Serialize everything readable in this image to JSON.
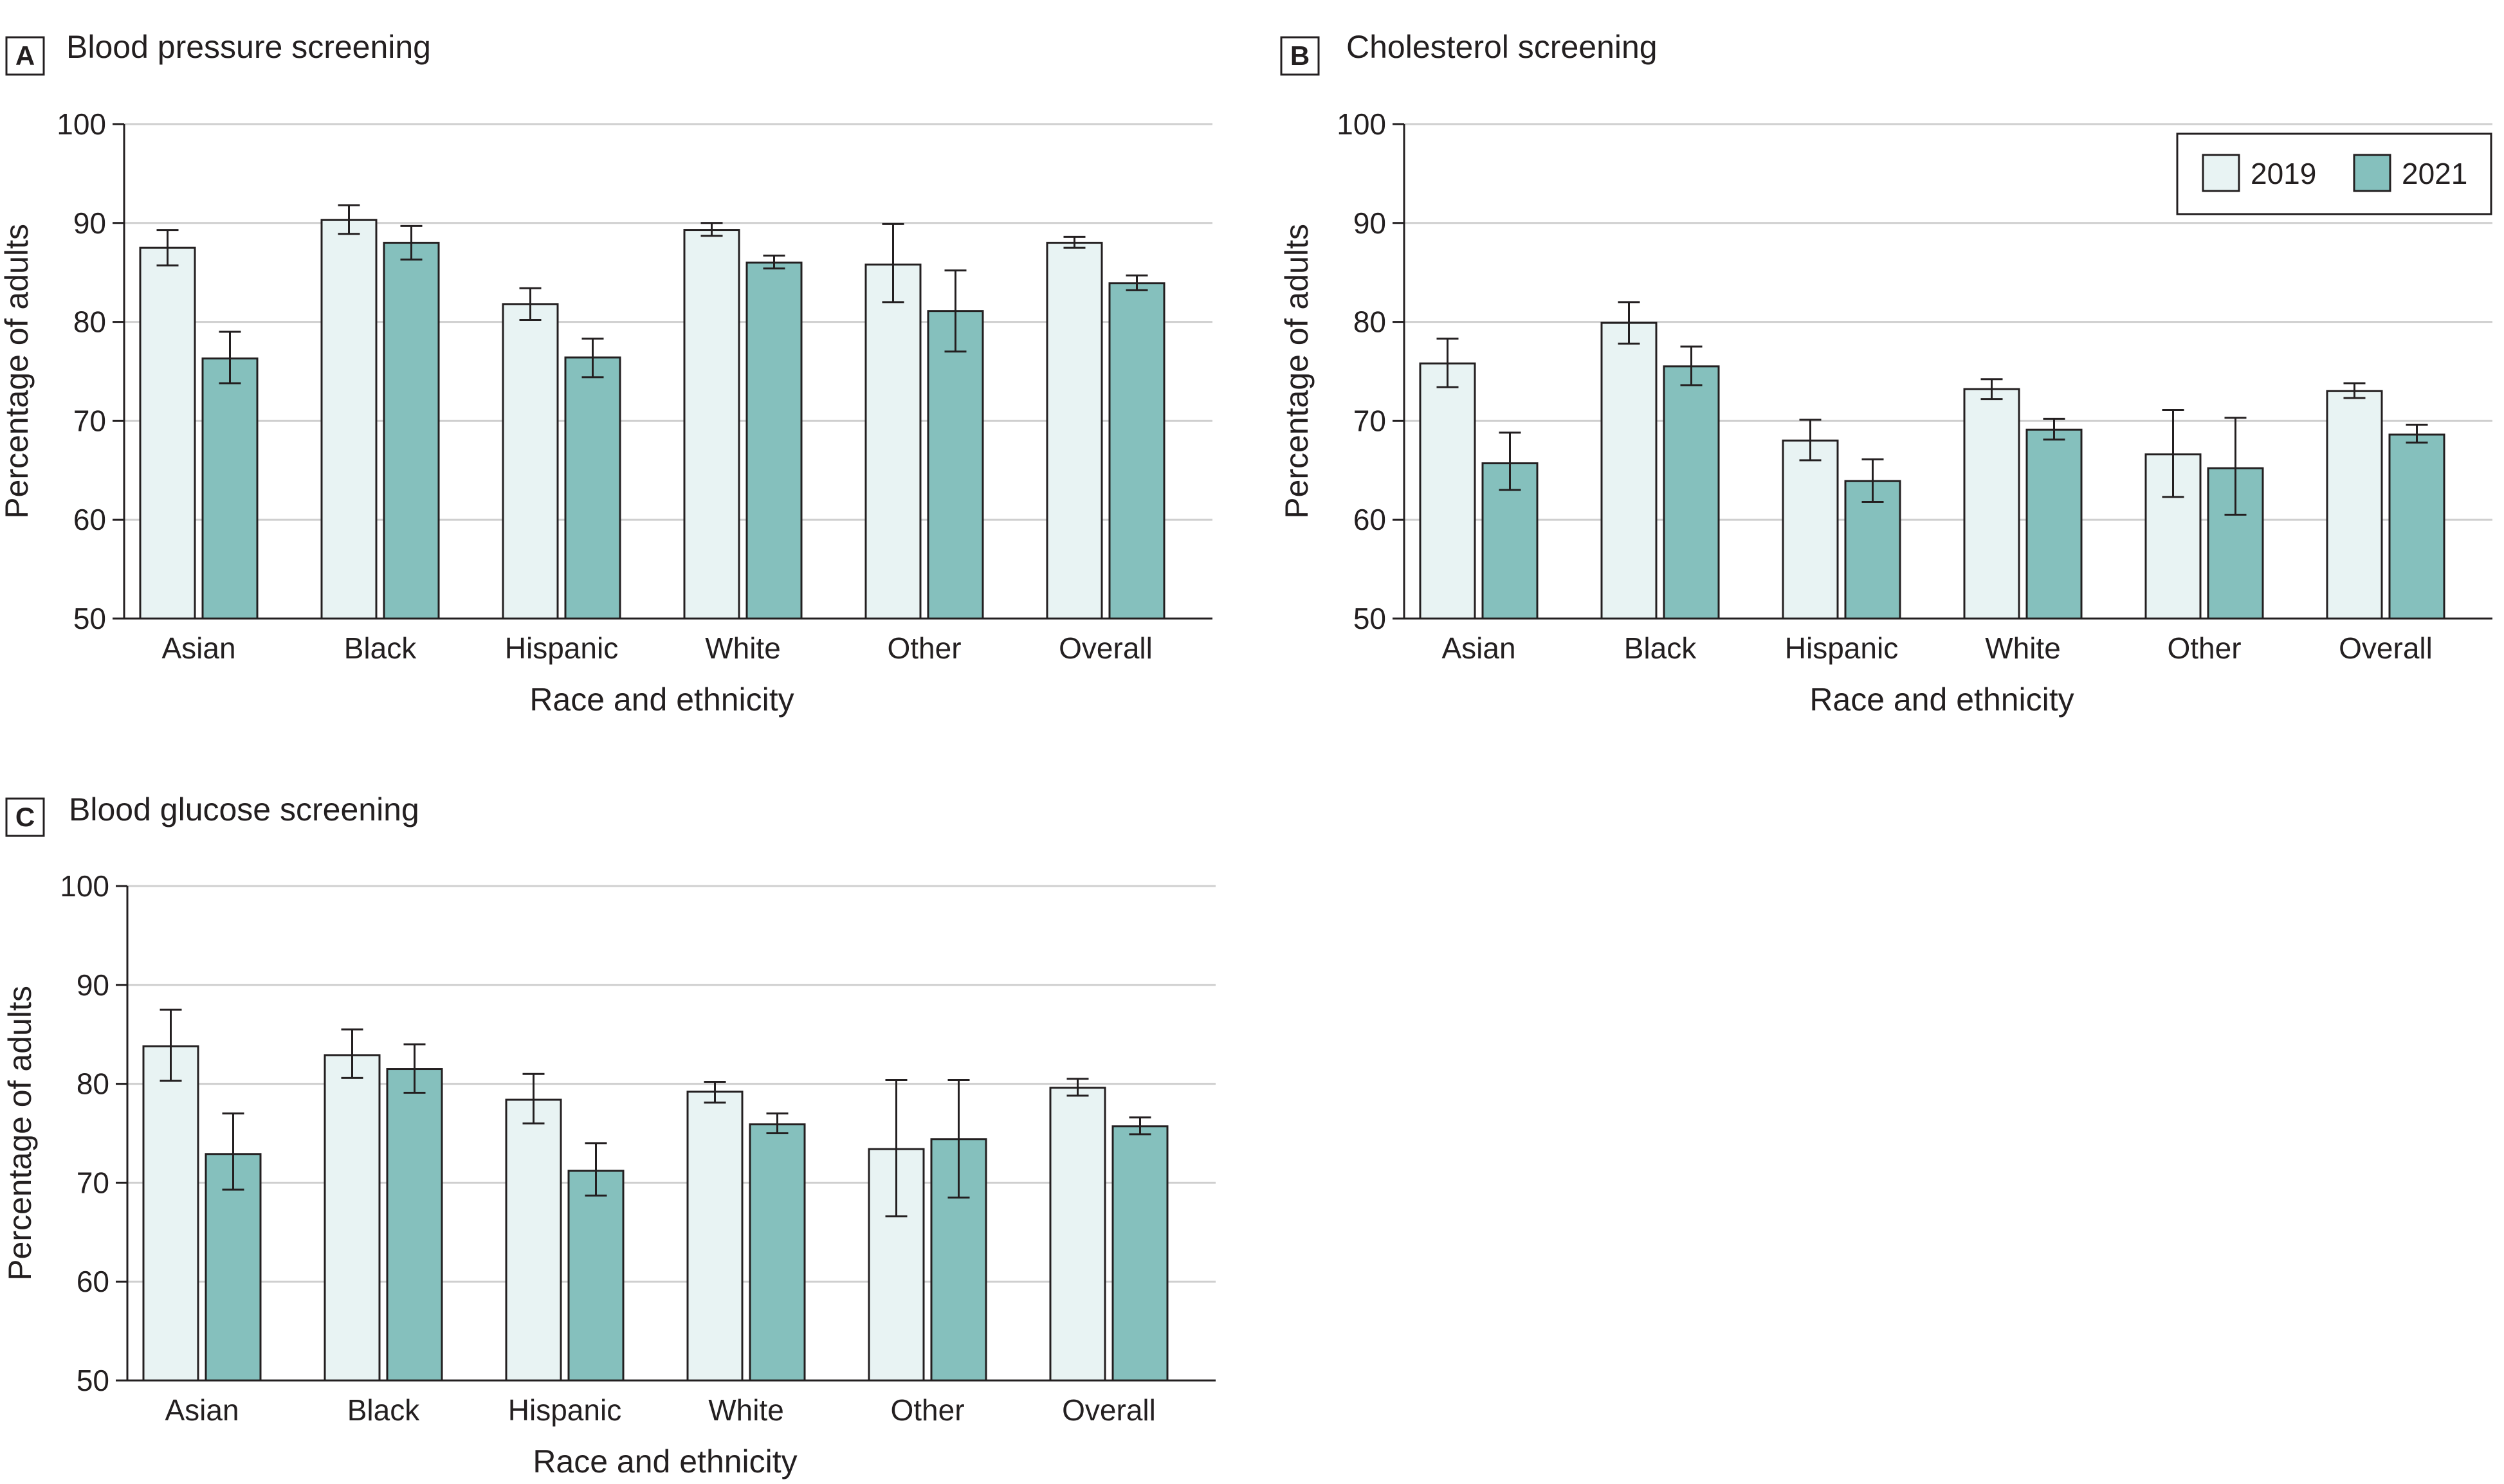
{
  "legend": {
    "entries": [
      {
        "label": "2019",
        "color": "#e8f3f3"
      },
      {
        "label": "2021",
        "color": "#85c0bd"
      }
    ]
  },
  "chart_data": [
    {
      "type": "bar",
      "panel_letter": "A",
      "title": "Blood pressure screening",
      "xlabel": "Race and ethnicity",
      "ylabel": "Percentage of adults",
      "ylim": [
        50,
        100
      ],
      "yticks": [
        "50",
        "60",
        "70",
        "80",
        "90",
        "100"
      ],
      "grid": true,
      "categories": [
        "Asian",
        "Black",
        "Hispanic",
        "White",
        "Other",
        "Overall"
      ],
      "series": [
        {
          "name": "2019",
          "values": [
            87.5,
            90.3,
            81.8,
            89.3,
            85.8,
            88.0
          ],
          "ci_low": [
            85.7,
            88.9,
            80.2,
            88.7,
            82.0,
            87.5
          ],
          "ci_high": [
            89.3,
            91.8,
            83.4,
            90.0,
            89.9,
            88.6
          ]
        },
        {
          "name": "2021",
          "values": [
            76.3,
            88.0,
            76.4,
            86.0,
            81.1,
            83.9
          ],
          "ci_low": [
            73.8,
            86.3,
            74.4,
            85.4,
            77.0,
            83.2
          ],
          "ci_high": [
            79.0,
            89.7,
            78.3,
            86.7,
            85.2,
            84.7
          ]
        }
      ]
    },
    {
      "type": "bar",
      "panel_letter": "B",
      "title": "Cholesterol screening",
      "xlabel": "Race and ethnicity",
      "ylabel": "Percentage of adults",
      "ylim": [
        50,
        100
      ],
      "yticks": [
        "50",
        "60",
        "70",
        "80",
        "90",
        "100"
      ],
      "grid": true,
      "legend_position": "top-right",
      "categories": [
        "Asian",
        "Black",
        "Hispanic",
        "White",
        "Other",
        "Overall"
      ],
      "series": [
        {
          "name": "2019",
          "values": [
            75.8,
            79.9,
            68.0,
            73.2,
            66.6,
            73.0
          ],
          "ci_low": [
            73.4,
            77.8,
            66.0,
            72.2,
            62.3,
            72.3
          ],
          "ci_high": [
            78.3,
            82.0,
            70.1,
            74.2,
            71.1,
            73.8
          ]
        },
        {
          "name": "2021",
          "values": [
            65.7,
            75.5,
            63.9,
            69.1,
            65.2,
            68.6
          ],
          "ci_low": [
            63.0,
            73.6,
            61.8,
            68.1,
            60.5,
            67.8
          ],
          "ci_high": [
            68.8,
            77.5,
            66.1,
            70.2,
            70.3,
            69.6
          ]
        }
      ]
    },
    {
      "type": "bar",
      "panel_letter": "C",
      "title": "Blood glucose screening",
      "xlabel": "Race and ethnicity",
      "ylabel": "Percentage of adults",
      "ylim": [
        50,
        100
      ],
      "yticks": [
        "50",
        "60",
        "70",
        "80",
        "90",
        "100"
      ],
      "grid": true,
      "categories": [
        "Asian",
        "Black",
        "Hispanic",
        "White",
        "Other",
        "Overall"
      ],
      "series": [
        {
          "name": "2019",
          "values": [
            83.8,
            82.9,
            78.4,
            79.2,
            73.4,
            79.6
          ],
          "ci_low": [
            80.3,
            80.6,
            76.0,
            78.1,
            66.6,
            78.8
          ],
          "ci_high": [
            87.5,
            85.5,
            81.0,
            80.2,
            80.4,
            80.5
          ]
        },
        {
          "name": "2021",
          "values": [
            72.9,
            81.5,
            71.2,
            75.9,
            74.4,
            75.7
          ],
          "ci_low": [
            69.3,
            79.1,
            68.7,
            75.0,
            68.5,
            74.9
          ],
          "ci_high": [
            77.0,
            84.0,
            74.0,
            77.0,
            80.4,
            76.6
          ]
        }
      ]
    }
  ]
}
